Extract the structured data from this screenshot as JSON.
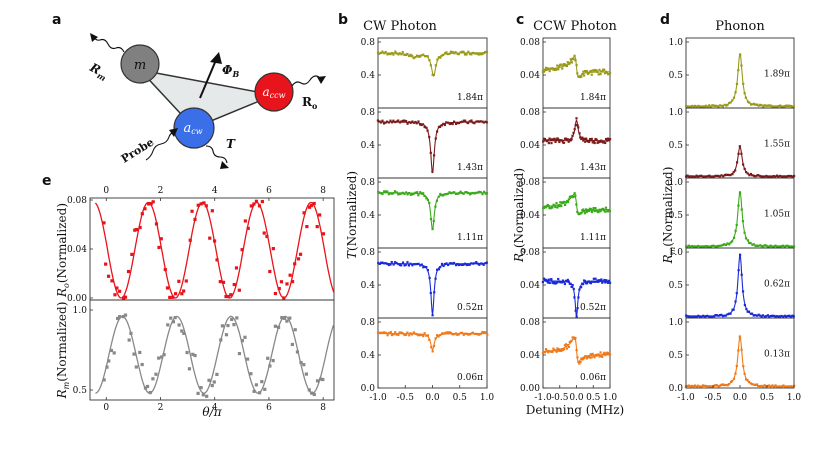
{
  "figure": {
    "panel_letters": [
      "a",
      "b",
      "c",
      "d",
      "e"
    ],
    "diagram": {
      "nodes": [
        {
          "id": "m",
          "label": "m",
          "color": "#808080"
        },
        {
          "id": "accw",
          "label": "a_ccw",
          "label_main": "a",
          "label_sub": "ccw",
          "color": "#e8141c"
        },
        {
          "id": "acw",
          "label": "a_cw",
          "label_main": "a",
          "label_sub": "cw",
          "color": "#3a6fe8"
        }
      ],
      "labels": {
        "Rm": {
          "main": "R",
          "sub": "m"
        },
        "Ro": {
          "main": "R",
          "sub": "o"
        },
        "PhiB": {
          "main": "Φ",
          "sub": "B"
        },
        "probe": "Probe",
        "T": "T"
      }
    }
  },
  "chart_data": [
    {
      "id": "b",
      "type": "line",
      "title": "CW Photon",
      "ylabel": "T(Normalized)",
      "ylabel_italic": "T",
      "ylabel_rest": "(Normalized)",
      "xlim": [
        -1.0,
        1.0
      ],
      "xticks": [
        "-1.0",
        "-0.5",
        "0.0",
        "0.5",
        "1.0"
      ],
      "ylim": [
        0.0,
        0.8
      ],
      "yticks": [
        "0.0",
        "0.4",
        "0.8"
      ],
      "series": [
        {
          "name": "1.84π",
          "color": "#9a9a1a",
          "baseline": 0.67,
          "shape": "dispersive",
          "depth": 0.28,
          "width": 0.05
        },
        {
          "name": "1.43π",
          "color": "#7a1a1a",
          "baseline": 0.68,
          "shape": "dip",
          "depth": 0.62,
          "width": 0.04
        },
        {
          "name": "1.11π",
          "color": "#3aaa1a",
          "baseline": 0.67,
          "shape": "dip",
          "depth": 0.45,
          "width": 0.04
        },
        {
          "name": "0.52π",
          "color": "#1a2ad8",
          "baseline": 0.66,
          "shape": "dip",
          "depth": 0.62,
          "width": 0.035
        },
        {
          "name": "0.06π",
          "color": "#f07a1a",
          "baseline": 0.66,
          "shape": "dip",
          "depth": 0.2,
          "width": 0.04
        }
      ]
    },
    {
      "id": "c",
      "type": "line",
      "title": "CCW Photon",
      "xlabel": "Detuning (MHz)",
      "ylabel": "Ro(Normalized)",
      "ylabel_italic": "R",
      "ylabel_sub": "o",
      "ylabel_rest": "(Normalized)",
      "xlim": [
        -1.0,
        1.0
      ],
      "xticks": [
        "-1.0",
        "-0.5",
        "0.0",
        "0.5",
        "1.0"
      ],
      "ylim": [
        0.0,
        0.08
      ],
      "yticks": [
        "0.00",
        "0.04",
        "0.08"
      ],
      "series": [
        {
          "name": "1.84π",
          "color": "#9a9a1a",
          "baseline": 0.045,
          "shape": "fano",
          "amp": 0.025,
          "width": 0.06
        },
        {
          "name": "1.43π",
          "color": "#7a1a1a",
          "baseline": 0.045,
          "shape": "peak",
          "amp": 0.025,
          "width": 0.06
        },
        {
          "name": "1.11π",
          "color": "#3aaa1a",
          "baseline": 0.048,
          "shape": "fano",
          "amp": 0.025,
          "width": 0.07
        },
        {
          "name": "0.52π",
          "color": "#1a2ad8",
          "baseline": 0.045,
          "shape": "dip",
          "amp": 0.043,
          "width": 0.05
        },
        {
          "name": "0.06π",
          "color": "#f07a1a",
          "baseline": 0.042,
          "shape": "fano",
          "amp": 0.03,
          "width": 0.06
        }
      ]
    },
    {
      "id": "d",
      "type": "line",
      "title": "Phonon",
      "ylabel": "Rm(Normalized)",
      "ylabel_italic": "R",
      "ylabel_sub": "m",
      "ylabel_rest": "(Normalized)",
      "xlim": [
        -1.0,
        1.0
      ],
      "xticks": [
        "-1.0",
        "-0.5",
        "0.0",
        "0.5",
        "1.0"
      ],
      "ylim": [
        0.0,
        1.0
      ],
      "yticks": [
        "0.0",
        "0.5",
        "1.0"
      ],
      "series": [
        {
          "name": "1.89π",
          "color": "#9a9a1a",
          "peak": 0.85,
          "width": 0.05
        },
        {
          "name": "1.55π",
          "color": "#7a1a1a",
          "peak": 0.48,
          "width": 0.05
        },
        {
          "name": "1.05π",
          "color": "#3aaa1a",
          "peak": 0.88,
          "width": 0.05
        },
        {
          "name": "0.62π",
          "color": "#1a2ad8",
          "peak": 1.0,
          "width": 0.045
        },
        {
          "name": "0.13π",
          "color": "#f07a1a",
          "peak": 0.8,
          "width": 0.05
        }
      ]
    },
    {
      "id": "e",
      "type": "scatter",
      "xlabel": "θ/π",
      "xlim": [
        -0.6,
        8.4
      ],
      "xticks": [
        "0",
        "2",
        "4",
        "6",
        "8"
      ],
      "top": {
        "ylabel": "Ro(Normalized)",
        "ylabel_italic": "R",
        "ylabel_sub": "o",
        "ylabel_rest": "(Normalized)",
        "ylim": [
          0.0,
          0.08
        ],
        "yticks": [
          "0.00",
          "0.04",
          "0.08"
        ],
        "color": "#e8141c",
        "fit_period": 2.0,
        "fit_center": 1.55,
        "fit_mean": 0.039,
        "fit_amp": 0.039
      },
      "bottom": {
        "ylabel": "Rm(Normalized)",
        "ylabel_italic": "R",
        "ylabel_sub": "m",
        "ylabel_rest": "(Normalized)",
        "ylim": [
          0.45,
          1.05
        ],
        "yticks": [
          "0.5",
          "1.0"
        ],
        "color": "#888888",
        "fit_period": 2.0,
        "fit_center": 0.6,
        "fit_mean": 0.72,
        "fit_amp": 0.24
      }
    }
  ]
}
